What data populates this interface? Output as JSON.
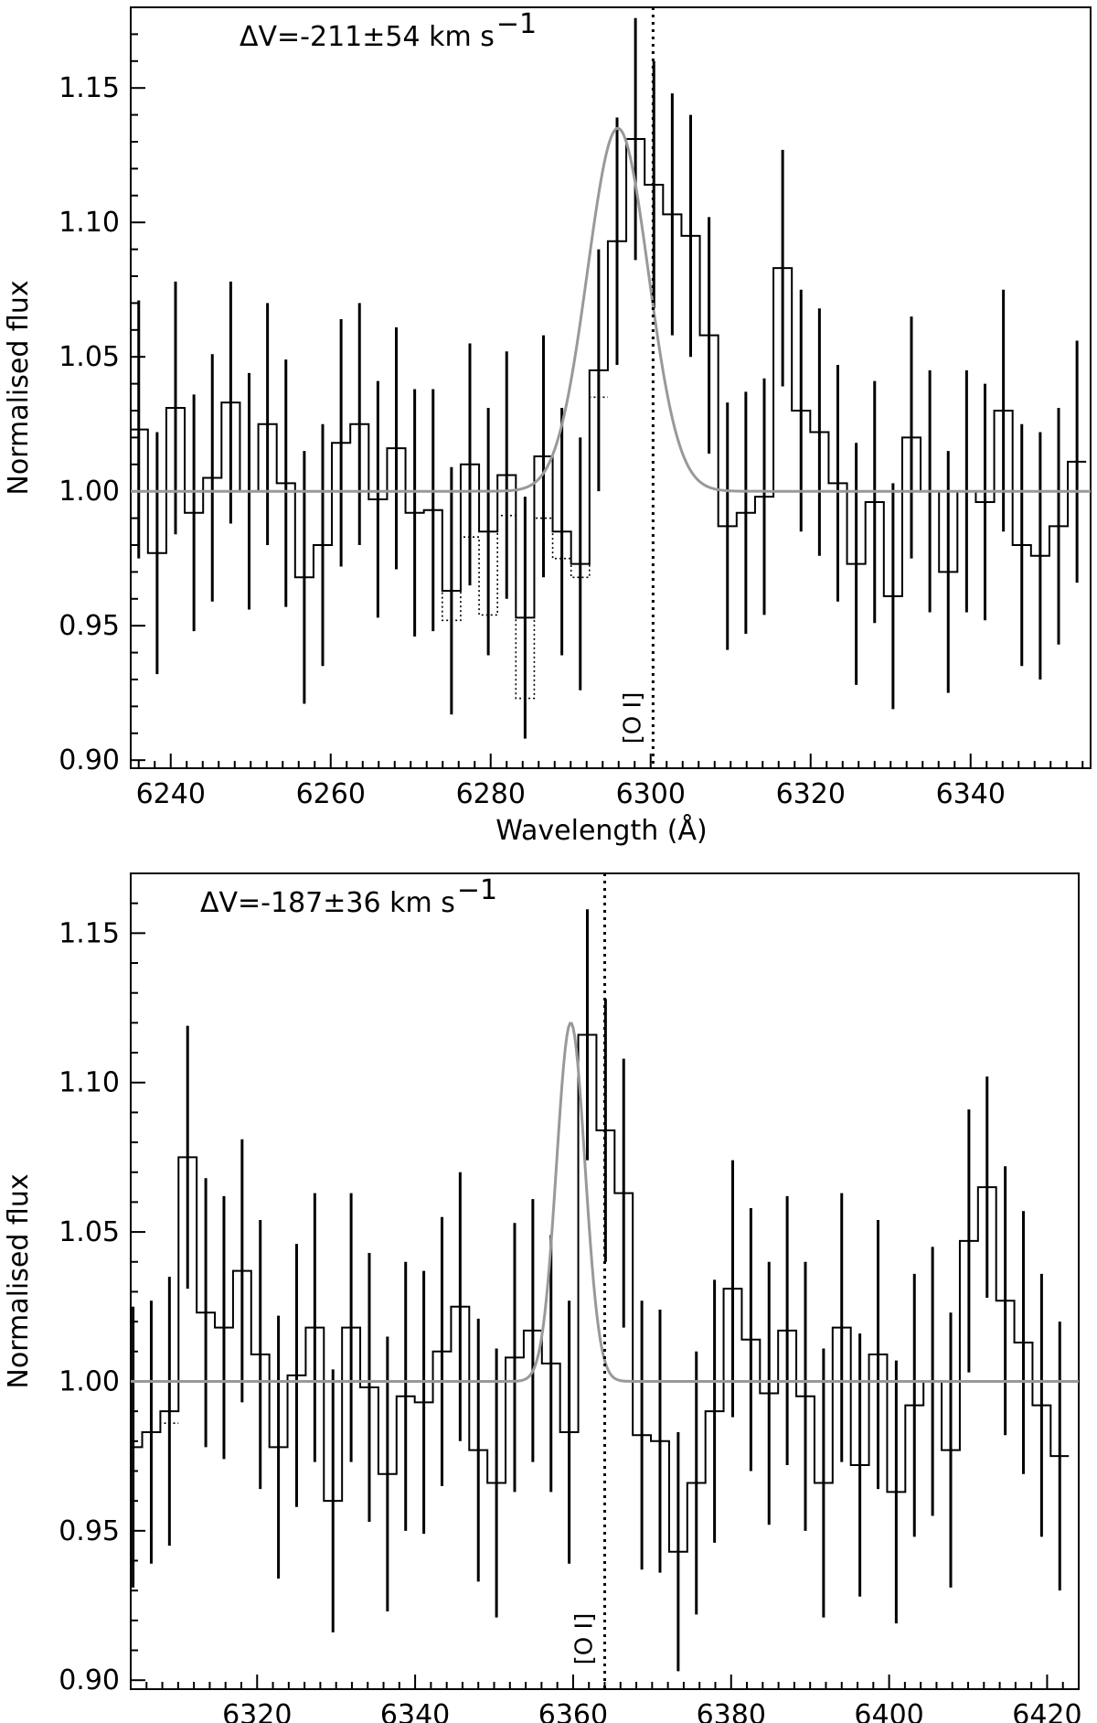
{
  "chart_data": [
    {
      "type": "line",
      "annotation": "ΔV=-211±54 km s",
      "annotation_sup": "−1",
      "xlabel": "Wavelength (Å)",
      "ylabel": "Normalised flux",
      "xlim": [
        6235,
        6355
      ],
      "ylim": [
        0.897,
        1.18
      ],
      "x_ticks": [
        6240,
        6260,
        6280,
        6300,
        6320,
        6340
      ],
      "y_ticks": [
        0.9,
        0.95,
        1.0,
        1.05,
        1.1,
        1.15
      ],
      "y_tick_labels": [
        "0.90",
        "0.95",
        "1.00",
        "1.05",
        "1.10",
        "1.15"
      ],
      "line_marker": {
        "label": "[O I]",
        "wavelength": 6300.3
      },
      "fit": {
        "amplitude": 0.135,
        "center": 6295.9,
        "sigma": 3.8,
        "baseline": 1.0,
        "color": "#999999"
      },
      "series": [
        {
          "x": [
            6236.0,
            6238.3,
            6240.6,
            6242.9,
            6245.2,
            6247.5,
            6249.8,
            6252.1,
            6254.4,
            6256.7,
            6259.0,
            6261.3,
            6263.6,
            6265.9,
            6268.2,
            6270.5,
            6272.8,
            6275.1,
            6277.4,
            6279.7,
            6282.0,
            6284.3,
            6286.6,
            6288.9,
            6291.2,
            6293.5,
            6295.8,
            6298.1,
            6300.4,
            6302.7,
            6305.0,
            6307.3,
            6309.6,
            6311.9,
            6314.2,
            6316.5,
            6318.8,
            6321.1,
            6323.4,
            6325.7,
            6328.0,
            6330.3,
            6332.6,
            6334.9,
            6337.2,
            6339.5,
            6341.8,
            6344.1,
            6346.4,
            6348.7,
            6351.0,
            6353.3
          ],
          "y": [
            1.023,
            0.977,
            1.031,
            0.992,
            1.005,
            1.033,
            1.0,
            1.025,
            1.003,
            0.968,
            0.98,
            1.018,
            1.025,
            0.997,
            1.016,
            0.992,
            0.993,
            0.963,
            1.01,
            0.985,
            1.006,
            0.953,
            1.013,
            0.985,
            0.973,
            1.045,
            1.093,
            1.131,
            1.114,
            1.103,
            1.095,
            1.058,
            0.987,
            0.992,
            0.998,
            1.083,
            1.03,
            1.022,
            1.003,
            0.973,
            0.996,
            0.961,
            1.02,
            1.0,
            0.97,
            1.0,
            0.996,
            1.03,
            0.98,
            0.976,
            0.987,
            1.011
          ],
          "err": [
            0.048,
            0.045,
            0.047,
            0.044,
            0.046,
            0.045,
            0.044,
            0.045,
            0.046,
            0.047,
            0.045,
            0.046,
            0.045,
            0.044,
            0.045,
            0.046,
            0.045,
            0.046,
            0.045,
            0.046,
            0.046,
            0.045,
            0.045,
            0.046,
            0.047,
            0.045,
            0.046,
            0.045,
            0.046,
            0.045,
            0.045,
            0.044,
            0.046,
            0.045,
            0.044,
            0.044,
            0.045,
            0.046,
            0.044,
            0.045,
            0.045,
            0.042,
            0.045,
            0.045,
            0.045,
            0.045,
            0.044,
            0.045,
            0.045,
            0.046,
            0.044,
            0.045
          ]
        },
        {
          "style": "dotted",
          "x": [
            6272.8,
            6275.1,
            6277.4,
            6279.7,
            6282.0,
            6284.3,
            6286.6,
            6288.9,
            6291.2,
            6293.5
          ],
          "y": [
            0.993,
            0.952,
            0.983,
            0.954,
            0.991,
            0.923,
            0.99,
            0.975,
            0.968,
            1.035
          ]
        }
      ]
    },
    {
      "type": "line",
      "annotation": "ΔV=-187±36 km s",
      "annotation_sup": "−1",
      "xlabel": "Wavelength (Å)",
      "ylabel": "Normalised flux",
      "xlim": [
        6304,
        6424
      ],
      "ylim": [
        0.897,
        1.17
      ],
      "x_ticks": [
        6320,
        6340,
        6360,
        6380,
        6400,
        6420
      ],
      "y_ticks": [
        0.9,
        0.95,
        1.0,
        1.05,
        1.1,
        1.15
      ],
      "y_tick_labels": [
        "0.90",
        "0.95",
        "1.00",
        "1.05",
        "1.10",
        "1.15"
      ],
      "line_marker": {
        "label": "[O I]",
        "wavelength": 6364.0
      },
      "fit": {
        "amplitude": 0.12,
        "center": 6359.7,
        "sigma": 1.8,
        "baseline": 1.0,
        "color": "#999999"
      },
      "series": [
        {
          "x": [
            6304.3,
            6306.6,
            6308.9,
            6311.2,
            6313.5,
            6315.8,
            6318.1,
            6320.4,
            6322.7,
            6325.0,
            6327.3,
            6329.6,
            6331.9,
            6334.2,
            6336.5,
            6338.8,
            6341.1,
            6343.4,
            6345.7,
            6348.0,
            6350.3,
            6352.6,
            6354.9,
            6357.2,
            6359.5,
            6361.8,
            6364.1,
            6366.4,
            6368.7,
            6371.0,
            6373.3,
            6375.6,
            6377.9,
            6380.2,
            6382.5,
            6384.8,
            6387.1,
            6389.4,
            6391.7,
            6394.0,
            6396.3,
            6398.6,
            6400.9,
            6403.2,
            6405.5,
            6407.8,
            6410.1,
            6412.4,
            6414.7,
            6417.0,
            6419.3,
            6421.6
          ],
          "y": [
            0.978,
            0.983,
            0.99,
            1.075,
            1.023,
            1.018,
            1.037,
            1.009,
            0.978,
            1.002,
            1.018,
            0.96,
            1.018,
            0.998,
            0.969,
            0.995,
            0.993,
            1.01,
            1.025,
            0.977,
            0.966,
            1.008,
            1.017,
            1.006,
            0.983,
            1.116,
            1.084,
            1.063,
            0.982,
            0.98,
            0.943,
            0.966,
            0.99,
            1.031,
            1.014,
            0.996,
            1.017,
            0.995,
            0.966,
            1.018,
            0.972,
            1.009,
            0.963,
            0.992,
            1.0,
            0.977,
            1.047,
            1.065,
            1.027,
            1.013,
            0.992,
            0.975
          ],
          "err": [
            0.047,
            0.044,
            0.045,
            0.044,
            0.045,
            0.044,
            0.044,
            0.045,
            0.044,
            0.044,
            0.045,
            0.044,
            0.045,
            0.045,
            0.046,
            0.045,
            0.044,
            0.045,
            0.045,
            0.044,
            0.045,
            0.045,
            0.044,
            0.043,
            0.044,
            0.042,
            0.044,
            0.045,
            0.045,
            0.044,
            0.04,
            0.044,
            0.044,
            0.043,
            0.044,
            0.044,
            0.045,
            0.045,
            0.045,
            0.045,
            0.044,
            0.045,
            0.044,
            0.044,
            0.045,
            0.046,
            0.044,
            0.037,
            0.045,
            0.044,
            0.044,
            0.045
          ]
        },
        {
          "style": "dotted",
          "x": [
            6304.3,
            6306.6,
            6308.9
          ],
          "y": [
            0.978,
            0.983,
            0.986
          ]
        }
      ]
    }
  ]
}
